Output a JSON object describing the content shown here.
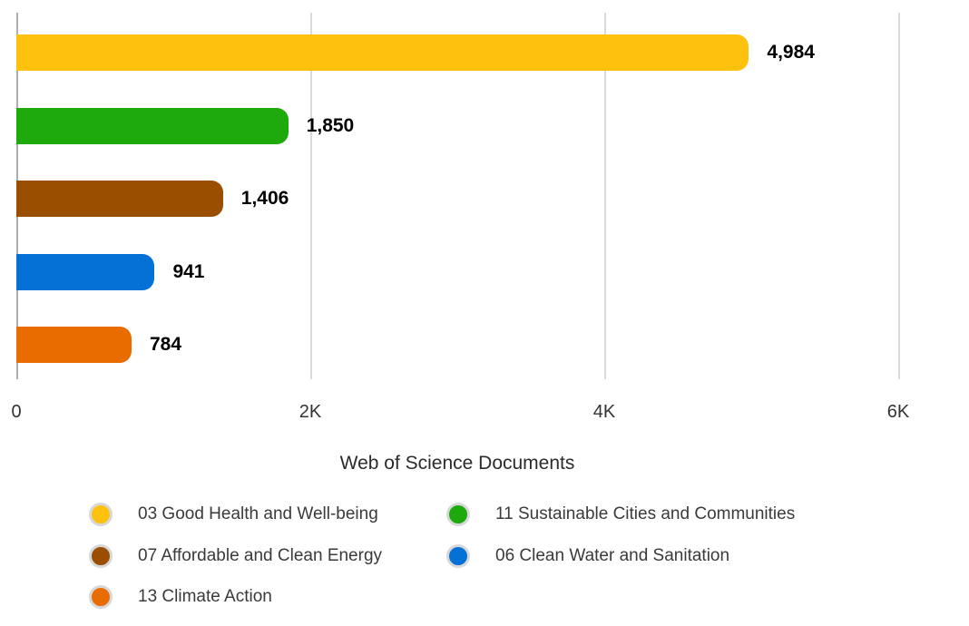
{
  "chart_data": {
    "type": "bar",
    "orientation": "horizontal",
    "title": "",
    "xlabel": "Web of Science Documents",
    "ylabel": "",
    "categories": [
      "03 Good Health and Well-being",
      "11 Sustainable Cities and Communities",
      "07 Affordable and Clean Energy",
      "06 Clean Water and Sanitation",
      "13 Climate Action"
    ],
    "values": [
      4984,
      1850,
      1406,
      941,
      784
    ],
    "value_labels": [
      "4,984",
      "1,850",
      "1,406",
      "941",
      "784"
    ],
    "colors": [
      "#FEC10D",
      "#1EA90D",
      "#9A4E00",
      "#0570D6",
      "#E86C00"
    ],
    "x_ticks": [
      {
        "value": 0,
        "label": "0"
      },
      {
        "value": 2000,
        "label": "2K"
      },
      {
        "value": 4000,
        "label": "4K"
      },
      {
        "value": 6000,
        "label": "6K"
      }
    ],
    "xlim": [
      0,
      6200
    ],
    "grid": "vertical-only",
    "legend_position": "bottom",
    "legend": [
      {
        "label": "03 Good Health and Well-being",
        "color": "#FEC10D"
      },
      {
        "label": "11 Sustainable Cities and Communities",
        "color": "#1EA90D"
      },
      {
        "label": "07 Affordable and Clean Energy",
        "color": "#9A4E00"
      },
      {
        "label": "06 Clean Water and Sanitation",
        "color": "#0570D6"
      },
      {
        "label": "13 Climate Action",
        "color": "#E86C00"
      }
    ]
  }
}
